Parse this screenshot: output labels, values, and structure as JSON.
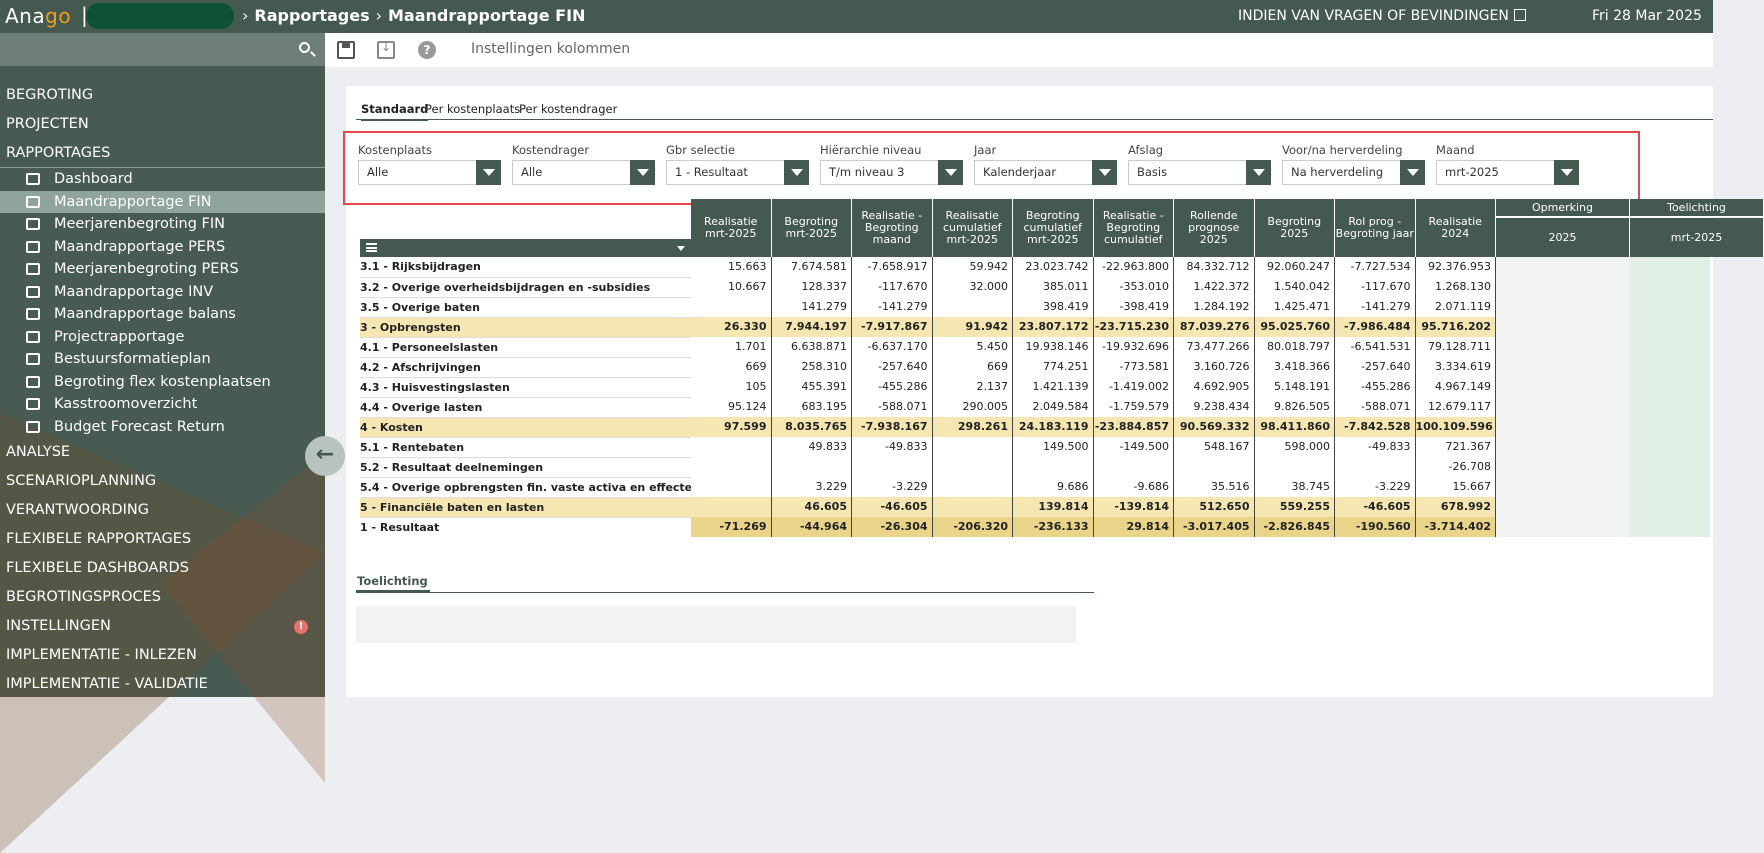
{
  "topbar": {
    "logo_a": "Ana",
    "logo_b": "go",
    "logo_c": "o",
    "logo_sep": "|",
    "crumb1": "Rapportages",
    "crumb_sep": "›",
    "crumb2": "Maandrapportage FIN",
    "help_link": "INDIEN VAN VRAGEN OF BEVINDINGEN",
    "date": "Fri 28 Mar 2025"
  },
  "sidebar": {
    "sections_top": [
      {
        "label": "BEGROTING"
      },
      {
        "label": "PROJECTEN"
      },
      {
        "label": "RAPPORTAGES"
      }
    ],
    "report_items": [
      {
        "label": "Dashboard",
        "icon": "chart-icon"
      },
      {
        "label": "Maandrapportage FIN",
        "icon": "coins-icon",
        "active": true
      },
      {
        "label": "Meerjarenbegroting FIN",
        "icon": "coins-icon"
      },
      {
        "label": "Maandrapportage PERS",
        "icon": "users-icon"
      },
      {
        "label": "Meerjarenbegroting PERS",
        "icon": "users-icon"
      },
      {
        "label": "Maandrapportage INV",
        "icon": "hand-icon"
      },
      {
        "label": "Maandrapportage balans",
        "icon": "scale-icon"
      },
      {
        "label": "Projectrapportage",
        "icon": "clipboard-icon"
      },
      {
        "label": "Bestuursformatieplan",
        "icon": "id-card-icon"
      },
      {
        "label": "Begroting flex kostenplaatsen",
        "icon": "coins-icon"
      },
      {
        "label": "Kasstroomoverzicht",
        "icon": "money-icon"
      },
      {
        "label": "Budget Forecast Return",
        "icon": "clipboard-icon"
      }
    ],
    "sections_bottom": [
      {
        "label": "ANALYSE"
      },
      {
        "label": "SCENARIOPLANNING"
      },
      {
        "label": "VERANTWOORDING"
      },
      {
        "label": "FLEXIBELE RAPPORTAGES"
      },
      {
        "label": "FLEXIBELE DASHBOARDS"
      },
      {
        "label": "BEGROTINGSPROCES"
      },
      {
        "label": "INSTELLINGEN",
        "badge": "!"
      },
      {
        "label": "IMPLEMENTATIE - INLEZEN"
      },
      {
        "label": "IMPLEMENTATIE - VALIDATIE"
      }
    ],
    "collapse_glyph": "←"
  },
  "toolbar": {
    "columns_link": "Instellingen kolommen",
    "help_glyph": "?"
  },
  "tabs": [
    "Standaard",
    "Per kostenplaats",
    "Per kostendrager"
  ],
  "filters": [
    {
      "label": "Kostenplaats",
      "value": "Alle"
    },
    {
      "label": "Kostendrager",
      "value": "Alle"
    },
    {
      "label": "Gbr selectie",
      "value": "1 - Resultaat"
    },
    {
      "label": "Hiërarchie niveau",
      "value": "T/m niveau 3"
    },
    {
      "label": "Jaar",
      "value": "Kalenderjaar"
    },
    {
      "label": "Afslag",
      "value": "Basis"
    },
    {
      "label": "Voor/na herverdeling",
      "value": "Na herverdeling"
    },
    {
      "label": "Maand",
      "value": "mrt-2025"
    }
  ],
  "table": {
    "columns": [
      "Realisatie mrt-2025",
      "Begroting mrt-2025",
      "Realisatie - Begroting maand",
      "Realisatie cumulatief mrt-2025",
      "Begroting cumulatief mrt-2025",
      "Realisatie - Begroting cumulatief",
      "Rollende prognose 2025",
      "Begroting 2025",
      "Rol prog - Begroting jaar",
      "Realisatie 2024"
    ],
    "extra_columns": [
      {
        "top": "Opmerking",
        "bottom": "2025"
      },
      {
        "top": "Toelichting",
        "bottom": "mrt-2025"
      }
    ],
    "rows": [
      {
        "label": "3.1 - Rijksbijdragen",
        "type": "normal",
        "values": [
          "15.663",
          "7.674.581",
          "-7.658.917",
          "59.942",
          "23.023.742",
          "-22.963.800",
          "84.332.712",
          "92.060.247",
          "-7.727.534",
          "92.376.953"
        ]
      },
      {
        "label": "3.2 - Overige overheidsbijdragen en -subsidies",
        "type": "normal",
        "values": [
          "10.667",
          "128.337",
          "-117.670",
          "32.000",
          "385.011",
          "-353.010",
          "1.422.372",
          "1.540.042",
          "-117.670",
          "1.268.130"
        ]
      },
      {
        "label": "3.5 - Overige baten",
        "type": "normal",
        "values": [
          "",
          "141.279",
          "-141.279",
          "",
          "398.419",
          "-398.419",
          "1.284.192",
          "1.425.471",
          "-141.279",
          "2.071.119"
        ]
      },
      {
        "label": "3 - Opbrengsten",
        "type": "sub",
        "values": [
          "26.330",
          "7.944.197",
          "-7.917.867",
          "91.942",
          "23.807.172",
          "-23.715.230",
          "87.039.276",
          "95.025.760",
          "-7.986.484",
          "95.716.202"
        ]
      },
      {
        "label": "4.1 - Personeelslasten",
        "type": "normal",
        "values": [
          "1.701",
          "6.638.871",
          "-6.637.170",
          "5.450",
          "19.938.146",
          "-19.932.696",
          "73.477.266",
          "80.018.797",
          "-6.541.531",
          "79.128.711"
        ]
      },
      {
        "label": "4.2 - Afschrijvingen",
        "type": "normal",
        "values": [
          "669",
          "258.310",
          "-257.640",
          "669",
          "774.251",
          "-773.581",
          "3.160.726",
          "3.418.366",
          "-257.640",
          "3.334.619"
        ]
      },
      {
        "label": "4.3 - Huisvestingslasten",
        "type": "normal",
        "values": [
          "105",
          "455.391",
          "-455.286",
          "2.137",
          "1.421.139",
          "-1.419.002",
          "4.692.905",
          "5.148.191",
          "-455.286",
          "4.967.149"
        ]
      },
      {
        "label": "4.4 - Overige lasten",
        "type": "normal",
        "values": [
          "95.124",
          "683.195",
          "-588.071",
          "290.005",
          "2.049.584",
          "-1.759.579",
          "9.238.434",
          "9.826.505",
          "-588.071",
          "12.679.117"
        ]
      },
      {
        "label": "4 - Kosten",
        "type": "sub",
        "values": [
          "97.599",
          "8.035.765",
          "-7.938.167",
          "298.261",
          "24.183.119",
          "-23.884.857",
          "90.569.332",
          "98.411.860",
          "-7.842.528",
          "100.109.596"
        ]
      },
      {
        "label": "5.1 - Rentebaten",
        "type": "normal",
        "values": [
          "",
          "49.833",
          "-49.833",
          "",
          "149.500",
          "-149.500",
          "548.167",
          "598.000",
          "-49.833",
          "721.367"
        ]
      },
      {
        "label": "5.2 - Resultaat deelnemingen",
        "type": "normal",
        "values": [
          "",
          "",
          "",
          "",
          "",
          "",
          "",
          "",
          "",
          "-26.708"
        ]
      },
      {
        "label": "5.4 - Overige opbrengsten fin. vaste activa en effecten",
        "type": "normal",
        "values": [
          "",
          "3.229",
          "-3.229",
          "",
          "9.686",
          "-9.686",
          "35.516",
          "38.745",
          "-3.229",
          "15.667"
        ]
      },
      {
        "label": "5 - Financiële baten en lasten",
        "type": "sub",
        "values": [
          "",
          "46.605",
          "-46.605",
          "",
          "139.814",
          "-139.814",
          "512.650",
          "559.255",
          "-46.605",
          "678.992"
        ]
      },
      {
        "label": "1 - Resultaat",
        "type": "total",
        "values": [
          "-71.269",
          "-44.964",
          "-26.304",
          "-206.320",
          "-236.133",
          "29.814",
          "-3.017.405",
          "-2.826.845",
          "-190.560",
          "-3.714.402"
        ]
      }
    ]
  },
  "toelichting_tab": "Toelichting"
}
